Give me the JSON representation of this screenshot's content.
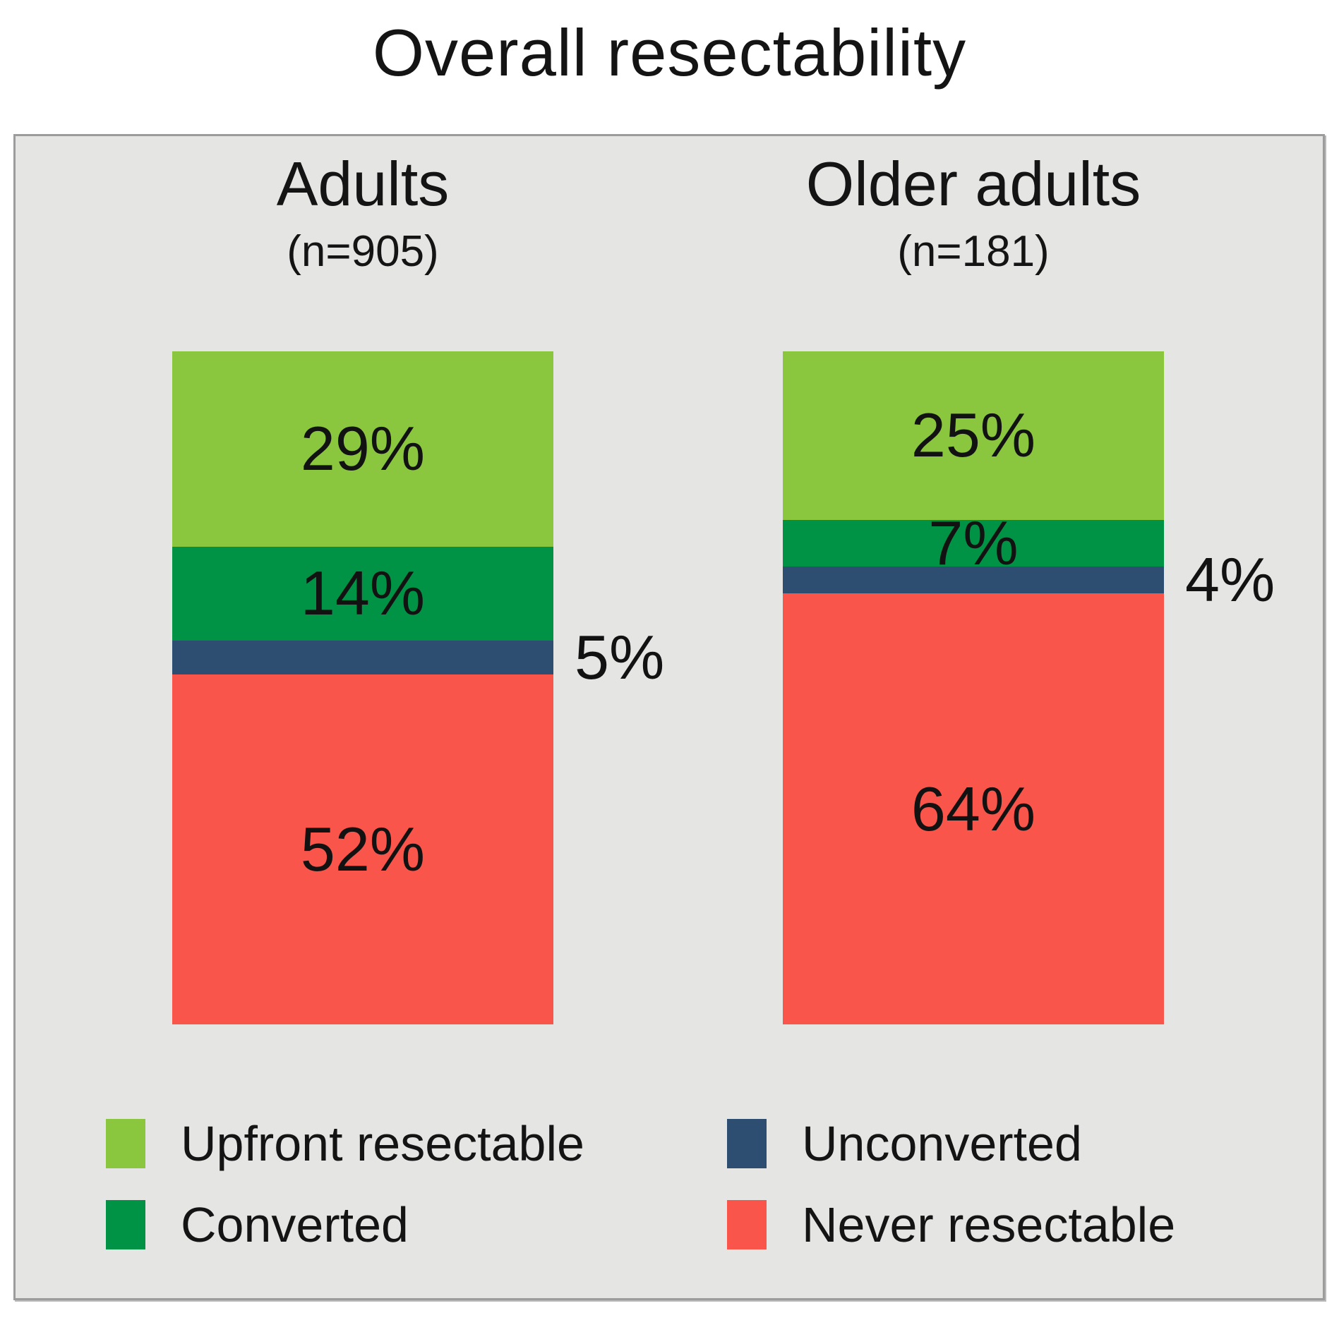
{
  "title": "Overall resectability",
  "panel": {
    "background": "#e5e5e4",
    "border_color": "#9c9c9c"
  },
  "chart_data": {
    "type": "bar",
    "stacked": true,
    "orientation": "vertical",
    "title": "Overall resectability",
    "categories": [
      "Adults",
      "Older adults"
    ],
    "category_sublabels": [
      "(n=905)",
      "(n=181)"
    ],
    "series": [
      {
        "name": "Upfront resectable",
        "color": "#8bc63f",
        "values": [
          29,
          25
        ]
      },
      {
        "name": "Converted",
        "color": "#009345",
        "values": [
          14,
          7
        ]
      },
      {
        "name": "Unconverted",
        "color": "#2d4e71",
        "values": [
          5,
          4
        ]
      },
      {
        "name": "Never resectable",
        "color": "#fa554b",
        "values": [
          52,
          64
        ]
      }
    ],
    "value_unit": "%",
    "ylim": [
      0,
      100
    ],
    "grid": false,
    "legend_position": "bottom",
    "labels_outside_bar": [
      "Unconverted"
    ]
  },
  "legend": {
    "items": [
      {
        "label": "Upfront resectable",
        "color": "#8bc63f"
      },
      {
        "label": "Converted",
        "color": "#009345"
      },
      {
        "label": "Unconverted",
        "color": "#2d4e71"
      },
      {
        "label": "Never resectable",
        "color": "#fa554b"
      }
    ]
  }
}
